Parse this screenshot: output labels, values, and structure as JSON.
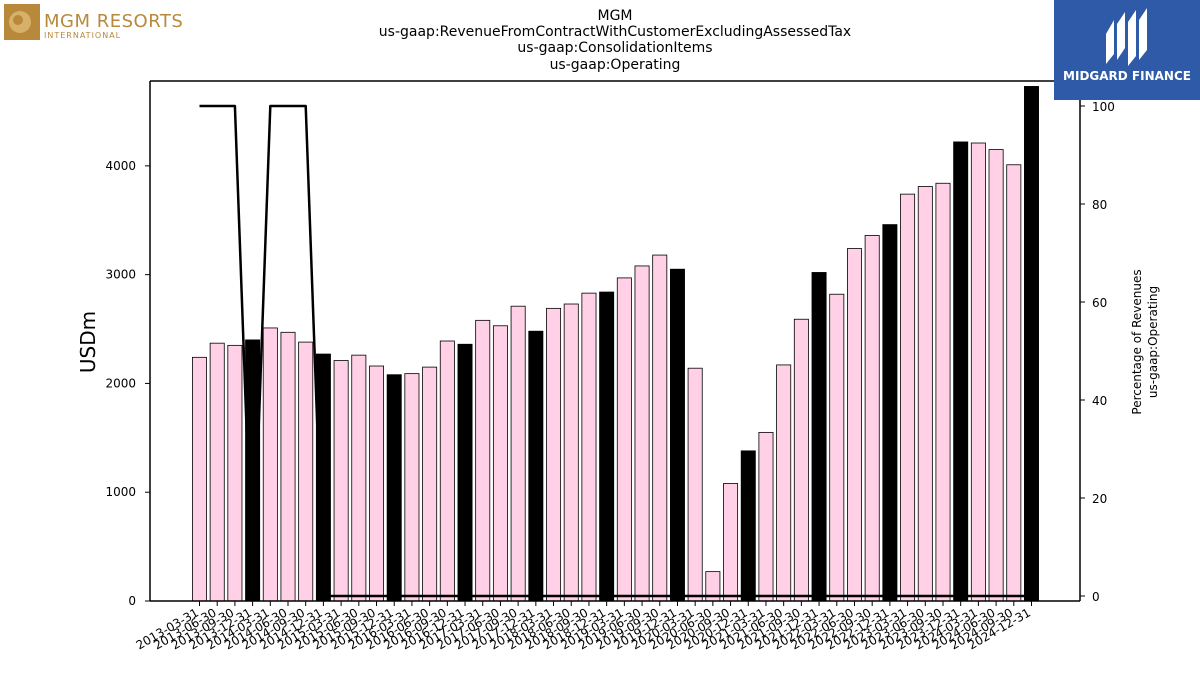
{
  "logos": {
    "left_line1": "MGM RESORTS",
    "left_line2": "INTERNATIONAL",
    "right_text": "MIDGARD FINANCE"
  },
  "chart_data": {
    "type": "bar",
    "title_lines": [
      "MGM",
      "us-gaap:RevenueFromContractWithCustomerExcludingAssessedTax",
      "us-gaap:ConsolidationItems",
      "us-gaap:Operating"
    ],
    "ylabel": "USDm",
    "ylabel_right": [
      "Percentage of Revenues",
      "us-gaap:Operating"
    ],
    "ylim": [
      0,
      4780
    ],
    "ylim_right": [
      0,
      100
    ],
    "yticks": [
      0,
      1000,
      2000,
      3000,
      4000
    ],
    "yticks_right": [
      0,
      20,
      40,
      60,
      80,
      100
    ],
    "colors": {
      "quarter": "#ffd0e6",
      "year_end": "#000000",
      "line": "#000000"
    },
    "categories": [
      "2013-03-31",
      "2013-06-30",
      "2013-09-30",
      "2013-12-31",
      "2014-03-31",
      "2014-06-30",
      "2014-09-30",
      "2014-12-31",
      "2015-03-31",
      "2015-06-30",
      "2015-09-30",
      "2015-12-31",
      "2016-03-31",
      "2016-06-30",
      "2016-09-30",
      "2016-12-31",
      "2017-03-31",
      "2017-06-30",
      "2017-09-30",
      "2017-12-31",
      "2018-03-31",
      "2018-06-30",
      "2018-09-30",
      "2018-12-31",
      "2019-03-31",
      "2019-06-30",
      "2019-09-30",
      "2019-12-31",
      "2020-03-31",
      "2020-06-30",
      "2020-09-30",
      "2020-12-31",
      "2021-03-31",
      "2021-06-30",
      "2021-09-30",
      "2021-12-31",
      "2022-03-31",
      "2022-06-30",
      "2022-09-30",
      "2022-12-31",
      "2023-03-31",
      "2023-06-30",
      "2023-09-30",
      "2023-12-31",
      "2024-03-31",
      "2024-06-30",
      "2024-09-30",
      "2024-12-31"
    ],
    "values": [
      2240,
      2370,
      2350,
      2400,
      2510,
      2470,
      2380,
      2270,
      2210,
      2260,
      2160,
      2080,
      2090,
      2150,
      2390,
      2360,
      2580,
      2530,
      2710,
      2480,
      2690,
      2730,
      2830,
      2840,
      2970,
      3080,
      3180,
      3050,
      2140,
      270,
      1080,
      1380,
      1550,
      2170,
      2590,
      3020,
      2820,
      3240,
      3360,
      3460,
      3740,
      3810,
      3840,
      4220,
      4210,
      4150,
      4010,
      4730
    ],
    "year_end": [
      false,
      false,
      false,
      true,
      false,
      false,
      false,
      true,
      false,
      false,
      false,
      true,
      false,
      false,
      false,
      true,
      false,
      false,
      false,
      true,
      false,
      false,
      false,
      true,
      false,
      false,
      false,
      true,
      false,
      false,
      false,
      true,
      false,
      false,
      false,
      true,
      false,
      false,
      false,
      true,
      false,
      false,
      false,
      true,
      false,
      false,
      false,
      true
    ],
    "line_pct": [
      100,
      100,
      100,
      0,
      100,
      100,
      100,
      0,
      0,
      0,
      0,
      0,
      0,
      0,
      0,
      0,
      0,
      0,
      0,
      0,
      0,
      0,
      0,
      0,
      0,
      0,
      0,
      0,
      0,
      0,
      0,
      0,
      0,
      0,
      0,
      0,
      0,
      0,
      0,
      0,
      0,
      0,
      0,
      0,
      0,
      0,
      0,
      0
    ]
  }
}
